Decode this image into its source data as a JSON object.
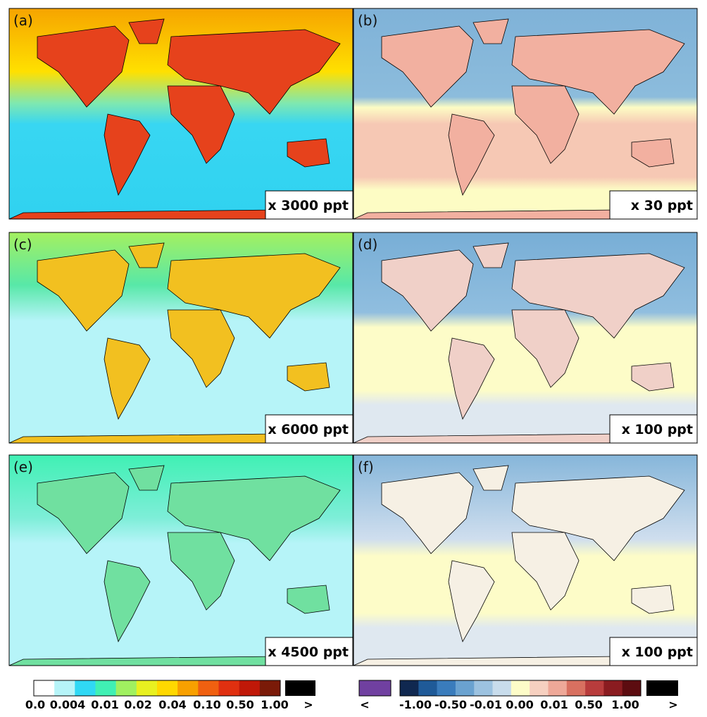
{
  "panels": [
    {
      "label": "(a)",
      "scale": "x 3000 ppt"
    },
    {
      "label": "(b)",
      "scale": "x 30 ppt"
    },
    {
      "label": "(c)",
      "scale": "x 6000 ppt"
    },
    {
      "label": "(d)",
      "scale": "x 100 ppt"
    },
    {
      "label": "(e)",
      "scale": "x 4500 ppt"
    },
    {
      "label": "(f)",
      "scale": "x 100 ppt"
    }
  ],
  "colorbars": [
    {
      "ticks": [
        "0.0",
        "0.004",
        "0.01",
        "0.02",
        "0.04",
        "0.10",
        "0.50",
        "1.00",
        ">"
      ]
    },
    {
      "ticks": [
        "<",
        "-1.00",
        "-0.50",
        "-0.01",
        "0.00",
        "0.01",
        "0.50",
        "1.00",
        ">"
      ]
    }
  ]
}
